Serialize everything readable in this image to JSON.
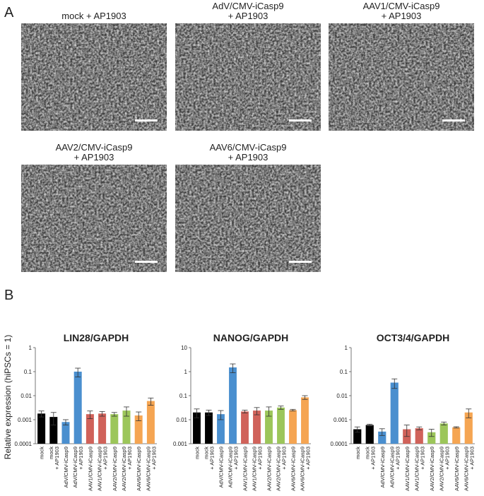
{
  "panel_labels": [
    "A",
    "B"
  ],
  "images": [
    {
      "caption": [
        "mock + AP1903"
      ]
    },
    {
      "caption": [
        "AdV/CMV-iCasp9",
        "+ AP1903"
      ]
    },
    {
      "caption": [
        "AAV1/CMV-iCasp9",
        "+ AP1903"
      ]
    },
    {
      "caption": [
        "AAV2/CMV-iCasp9",
        "+ AP1903"
      ]
    },
    {
      "caption": [
        "AAV6/CMV-iCasp9",
        "+ AP1903"
      ]
    }
  ],
  "y_axis_label": "Relative expression (hiPSCs = 1)",
  "chart_data": [
    {
      "type": "bar",
      "title": "LIN28/GAPDH",
      "log_scale": true,
      "categories": [
        [
          "mock"
        ],
        [
          "mock",
          "+ AP1903"
        ],
        [
          "AdV/CMV-iCasp9"
        ],
        [
          "AdV/CMV-iCasp9",
          "+ AP1903"
        ],
        [
          "AAV1/CMV-iCasp9"
        ],
        [
          "AAV1/CMV-iCasp9",
          "+ AP1903"
        ],
        [
          "AAV2/CMV-iCasp9"
        ],
        [
          "AAV2/CMV-iCasp9",
          "+ AP1903"
        ],
        [
          "AAV6/CMV-iCasp9"
        ],
        [
          "AAV6/CMV-iCasp9",
          "+ AP1903"
        ]
      ],
      "values": [
        0.0018,
        0.0013,
        0.0008,
        0.1,
        0.0017,
        0.0018,
        0.0017,
        0.0024,
        0.0015,
        0.006
      ],
      "errors": [
        0.0005,
        0.0007,
        0.0002,
        0.04,
        0.0006,
        0.0004,
        0.0003,
        0.001,
        0.0006,
        0.002
      ],
      "colors": [
        "#000000",
        "#000000",
        "#4a8fcf",
        "#4a8fcf",
        "#d0625a",
        "#d0625a",
        "#9cc65a",
        "#9cc65a",
        "#f5a552",
        "#f5a552"
      ],
      "ylim": [
        0.0001,
        1
      ],
      "yticks": [
        0.0001,
        0.001,
        0.01,
        0.1,
        1
      ]
    },
    {
      "type": "bar",
      "title": "NANOG/GAPDH",
      "log_scale": true,
      "categories": [
        [
          "mock"
        ],
        [
          "mock",
          "+ AP1903"
        ],
        [
          "AdV/CMV-iCasp9"
        ],
        [
          "AdV/CMV-iCasp9",
          "+ AP1903"
        ],
        [
          "AAV1/CMV-iCasp9"
        ],
        [
          "AAV1/CMV-iCasp9",
          "+ AP1903"
        ],
        [
          "AAV2/CMV-iCasp9"
        ],
        [
          "AAV2/CMV-iCasp9",
          "+ AP1903"
        ],
        [
          "AAV6/CMV-iCasp9"
        ],
        [
          "AAV6/CMV-iCasp9",
          "+ AP1903"
        ]
      ],
      "values": [
        0.02,
        0.02,
        0.017,
        1.5,
        0.022,
        0.024,
        0.024,
        0.032,
        0.025,
        0.085
      ],
      "errors": [
        0.008,
        0.005,
        0.007,
        0.6,
        0.003,
        0.008,
        0.01,
        0.005,
        0.002,
        0.015
      ],
      "colors": [
        "#000000",
        "#000000",
        "#4a8fcf",
        "#4a8fcf",
        "#d0625a",
        "#d0625a",
        "#9cc65a",
        "#9cc65a",
        "#f5a552",
        "#f5a552"
      ],
      "ylim": [
        0.001,
        10
      ],
      "yticks": [
        0.001,
        0.01,
        0.1,
        1,
        10
      ]
    },
    {
      "type": "bar",
      "title": "OCT3/4/GAPDH",
      "log_scale": true,
      "categories": [
        [
          "mock"
        ],
        [
          "mock",
          "+ AP1903"
        ],
        [
          "AdV/CMV-iCasp9"
        ],
        [
          "AdV/CMV-iCasp9",
          "+ AP1903"
        ],
        [
          "AAV1/CMV-iCasp9"
        ],
        [
          "AAV1/CMV-iCasp9",
          "+ AP1903"
        ],
        [
          "AAV2/CMV-iCasp9"
        ],
        [
          "AAV2/CMV-iCasp9",
          "+ AP1903"
        ],
        [
          "AAV6/CMV-iCasp9"
        ],
        [
          "AAV6/CMV-iCasp9",
          "+ AP1903"
        ]
      ],
      "values": [
        0.0004,
        0.0006,
        0.00032,
        0.035,
        0.0004,
        0.00044,
        0.0003,
        0.0007,
        0.00048,
        0.002
      ],
      "errors": [
        0.0001,
        5e-05,
        0.0001,
        0.015,
        0.0002,
        6e-05,
        0.0001,
        0.0001,
        3e-05,
        0.0008
      ],
      "colors": [
        "#000000",
        "#000000",
        "#4a8fcf",
        "#4a8fcf",
        "#d0625a",
        "#d0625a",
        "#9cc65a",
        "#9cc65a",
        "#f5a552",
        "#f5a552"
      ],
      "ylim": [
        0.0001,
        1
      ],
      "yticks": [
        0.0001,
        0.001,
        0.01,
        0.1,
        1
      ]
    }
  ]
}
